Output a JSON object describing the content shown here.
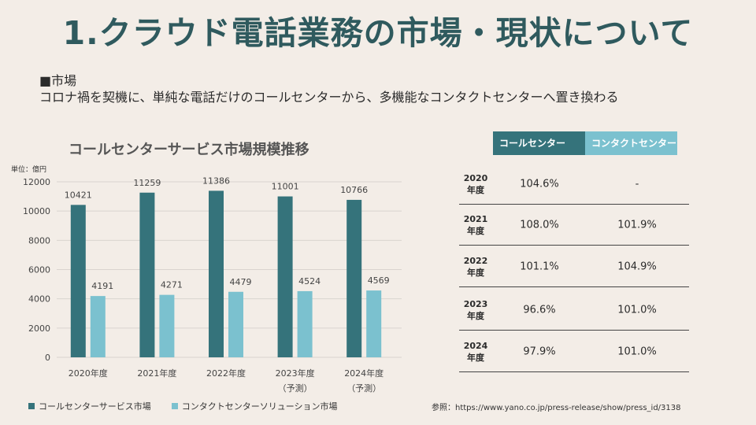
{
  "slide": {
    "title": "1.クラウド電話業務の市場・現状について",
    "market_heading": "■市場",
    "market_text": "コロナ禍を契機に、単純な電話だけのコールセンターから、多機能なコンタクトセンターへ置き換わる",
    "reference": "参照：https://www.yano.co.jp/press-release/show/press_id/3138"
  },
  "colors": {
    "call": "#35737b",
    "contact": "#7bc1cf",
    "title": "#2f5a5e",
    "background": "#f3ede7"
  },
  "chart_data": {
    "type": "bar",
    "title": "コールセンターサービス市場規模推移",
    "unit_label": "単位：億円",
    "categories": [
      {
        "line1": "2020年度",
        "line2": ""
      },
      {
        "line1": "2021年度",
        "line2": ""
      },
      {
        "line1": "2022年度",
        "line2": ""
      },
      {
        "line1": "2023年度",
        "line2": "（予測）"
      },
      {
        "line1": "2024年度",
        "line2": "（予測）"
      }
    ],
    "series": [
      {
        "name": "コールセンターサービス市場",
        "values": [
          10421,
          11259,
          11386,
          11001,
          10766
        ]
      },
      {
        "name": "コンタクトセンターソリューション市場",
        "values": [
          4191,
          4271,
          4479,
          4524,
          4569
        ]
      }
    ],
    "y_ticks": [
      0,
      2000,
      4000,
      6000,
      8000,
      10000,
      12000
    ],
    "ylim": [
      0,
      12000
    ],
    "grid": true,
    "legend": "bottom-left"
  },
  "table": {
    "headers": [
      "コールセンター",
      "コンタクトセンター"
    ],
    "rows": [
      {
        "year": "2020",
        "suffix": "年度",
        "call": "104.6%",
        "contact": "-"
      },
      {
        "year": "2021",
        "suffix": "年度",
        "call": "108.0%",
        "contact": "101.9%"
      },
      {
        "year": "2022",
        "suffix": "年度",
        "call": "101.1%",
        "contact": "104.9%"
      },
      {
        "year": "2023",
        "suffix": "年度",
        "call": "96.6%",
        "contact": "101.0%"
      },
      {
        "year": "2024",
        "suffix": "年度",
        "call": "97.9%",
        "contact": "101.0%"
      }
    ]
  }
}
